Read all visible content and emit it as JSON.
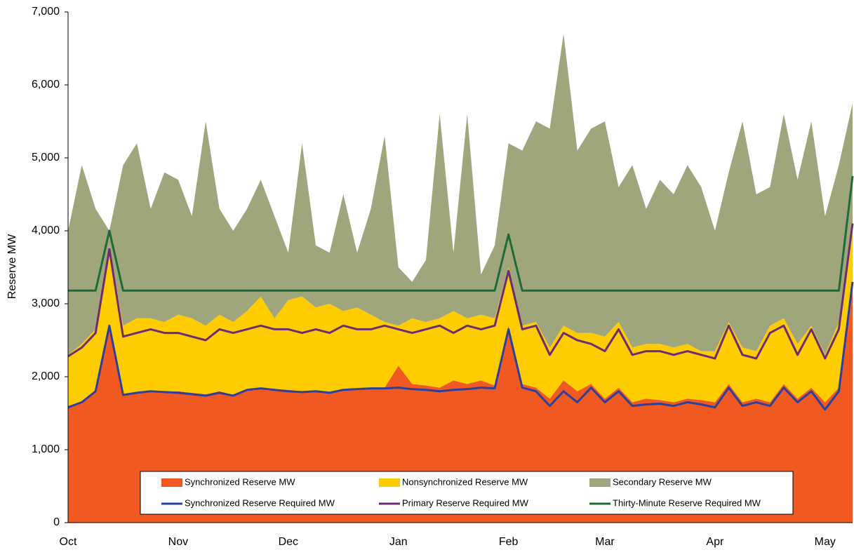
{
  "chart_data": {
    "type": "area",
    "y_label": "Reserve MW",
    "ylim": [
      0,
      7000
    ],
    "yticks": [
      0,
      {
        "value": 1000,
        "label": "1,000"
      },
      {
        "value": 2000,
        "label": "2,000"
      },
      {
        "value": 3000,
        "label": "3,000"
      },
      {
        "value": 4000,
        "label": "4,000"
      },
      {
        "value": 5000,
        "label": "5,000"
      },
      {
        "value": 6000,
        "label": "6,000"
      },
      {
        "value": 7000,
        "label": "7,000"
      }
    ],
    "categories": [
      "Oct",
      null,
      null,
      null,
      null,
      null,
      null,
      null,
      "Nov",
      null,
      null,
      null,
      null,
      null,
      null,
      null,
      "Dec",
      null,
      null,
      null,
      null,
      null,
      null,
      null,
      "Jan",
      null,
      null,
      null,
      null,
      null,
      null,
      null,
      "Feb",
      null,
      null,
      null,
      null,
      null,
      null,
      "Mar",
      null,
      null,
      null,
      null,
      null,
      null,
      null,
      "Apr",
      null,
      null,
      null,
      null,
      null,
      null,
      null,
      "May",
      null,
      null
    ],
    "legend": "bottom",
    "series": [
      {
        "name": "Synchronized Reserve MW",
        "kind": "area",
        "color": "#f05a22",
        "values": [
          1580,
          1650,
          1800,
          2700,
          1750,
          1780,
          1800,
          1790,
          1800,
          1780,
          1760,
          1800,
          1750,
          1820,
          1850,
          1830,
          1820,
          1800,
          1810,
          1790,
          1830,
          1840,
          1850,
          1850,
          2150,
          1900,
          1880,
          1850,
          1950,
          1900,
          1950,
          1880,
          2700,
          1900,
          1850,
          1700,
          1950,
          1800,
          1900,
          1700,
          1850,
          1650,
          1700,
          1680,
          1650,
          1700,
          1680,
          1650,
          1900,
          1650,
          1700,
          1650,
          1900,
          1700,
          1850,
          1650,
          1850,
          3300
        ]
      },
      {
        "name": "Nonsynchronized Reserve MW",
        "kind": "area",
        "color": "#ffcc00",
        "values": [
          720,
          800,
          850,
          1100,
          950,
          1020,
          1000,
          960,
          1050,
          1020,
          940,
          1050,
          1000,
          1080,
          1250,
          970,
          1230,
          1300,
          1140,
          1210,
          1070,
          1110,
          1000,
          900,
          550,
          900,
          870,
          950,
          950,
          900,
          900,
          920,
          800,
          800,
          900,
          700,
          750,
          800,
          700,
          850,
          900,
          750,
          750,
          770,
          750,
          750,
          670,
          700,
          850,
          750,
          650,
          1050,
          900,
          750,
          850,
          650,
          900,
          800
        ]
      },
      {
        "name": "Secondary Reserve MW",
        "kind": "area",
        "color": "#9fa67b",
        "values": [
          1700,
          2450,
          1650,
          200,
          2200,
          2400,
          1500,
          2050,
          1850,
          1400,
          2800,
          1450,
          1250,
          1400,
          1600,
          1400,
          650,
          2100,
          850,
          700,
          1600,
          750,
          1450,
          2550,
          800,
          500,
          850,
          2800,
          800,
          2800,
          550,
          1000,
          1700,
          2400,
          2750,
          3000,
          4000,
          2500,
          2800,
          2950,
          1850,
          2500,
          1850,
          2250,
          2100,
          2450,
          2250,
          1650,
          2050,
          3100,
          2150,
          1900,
          2800,
          2250,
          2800,
          1900,
          2150,
          1650
        ]
      },
      {
        "name": "Synchronized Reserve Required MW",
        "kind": "line",
        "color": "#2b3f9c",
        "values": [
          1580,
          1650,
          1800,
          2700,
          1750,
          1780,
          1800,
          1790,
          1780,
          1760,
          1740,
          1780,
          1740,
          1820,
          1840,
          1820,
          1800,
          1790,
          1800,
          1780,
          1820,
          1830,
          1840,
          1840,
          1850,
          1830,
          1820,
          1800,
          1820,
          1830,
          1850,
          1840,
          2650,
          1850,
          1800,
          1600,
          1800,
          1650,
          1850,
          1650,
          1800,
          1600,
          1620,
          1630,
          1600,
          1650,
          1620,
          1580,
          1850,
          1600,
          1650,
          1600,
          1850,
          1650,
          1800,
          1550,
          1800,
          3300
        ]
      },
      {
        "name": "Primary Reserve Required MW",
        "kind": "line",
        "color": "#6b2c74",
        "values": [
          2280,
          2400,
          2600,
          3750,
          2550,
          2600,
          2650,
          2600,
          2600,
          2550,
          2500,
          2650,
          2600,
          2650,
          2700,
          2650,
          2650,
          2600,
          2650,
          2600,
          2700,
          2650,
          2650,
          2700,
          2650,
          2600,
          2650,
          2700,
          2600,
          2700,
          2650,
          2700,
          3450,
          2650,
          2700,
          2300,
          2600,
          2500,
          2450,
          2350,
          2650,
          2300,
          2350,
          2350,
          2300,
          2350,
          2300,
          2250,
          2700,
          2300,
          2250,
          2600,
          2700,
          2300,
          2650,
          2250,
          2650,
          4100
        ]
      },
      {
        "name": "Thirty-Minute Reserve Required MW",
        "kind": "line",
        "color": "#1e6b3a",
        "values": [
          3180,
          3180,
          3180,
          4000,
          3180,
          3180,
          3180,
          3180,
          3180,
          3180,
          3180,
          3180,
          3180,
          3180,
          3180,
          3180,
          3180,
          3180,
          3180,
          3180,
          3180,
          3180,
          3180,
          3180,
          3180,
          3180,
          3180,
          3180,
          3180,
          3180,
          3180,
          3180,
          3950,
          3180,
          3180,
          3180,
          3180,
          3180,
          3180,
          3180,
          3180,
          3180,
          3180,
          3180,
          3180,
          3180,
          3180,
          3180,
          3180,
          3180,
          3180,
          3180,
          3180,
          3180,
          3180,
          3180,
          3180,
          4750
        ]
      }
    ]
  }
}
